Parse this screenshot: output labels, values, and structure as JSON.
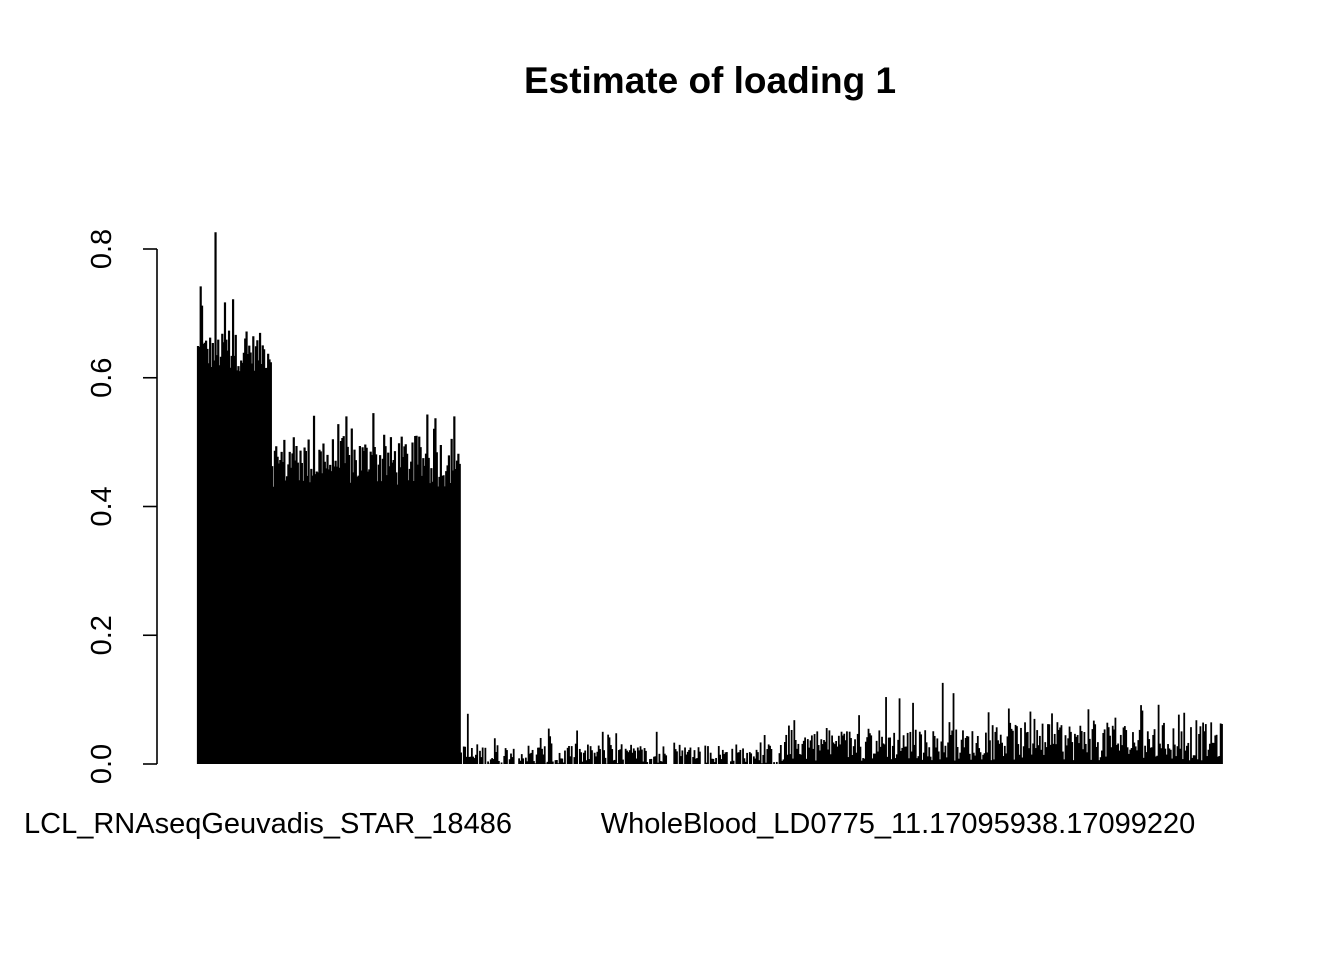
{
  "chart_data": {
    "type": "bar",
    "title": "Estimate of loading 1",
    "xlabel": "",
    "ylabel": "",
    "ylim": [
      0,
      0.8
    ],
    "yticks": [
      "0.0",
      "0.2",
      "0.4",
      "0.6",
      "0.8"
    ],
    "ytick_values": [
      0,
      0.2,
      0.4,
      0.6,
      0.8
    ],
    "xtick_labels": [
      "LCL_RNAseqGeuvadis_STAR_18486",
      "WholeBlood_LD0775_11.17095938.17099220"
    ],
    "grid": false,
    "legend": "none",
    "bar_color": "#000000",
    "n_bars": 760,
    "segments": [
      {
        "start": 0,
        "count": 55,
        "base": 0.64,
        "spread": 0.03,
        "peaks": [
          [
            13,
            0.826
          ],
          [
            2,
            0.742
          ],
          [
            26,
            0.722
          ],
          [
            20,
            0.717
          ],
          [
            3,
            0.712
          ]
        ]
      },
      {
        "start": 55,
        "count": 140,
        "base": 0.47,
        "spread": 0.04,
        "peaks": [
          [
            130,
            0.545
          ],
          [
            170,
            0.543
          ],
          [
            190,
            0.54
          ],
          [
            110,
            0.54
          ],
          [
            86,
            0.541
          ]
        ]
      },
      {
        "start": 195,
        "count": 240,
        "base": 0.012,
        "spread": 0.02,
        "peaks": [
          [
            200,
            0.078
          ],
          [
            220,
            0.04
          ],
          [
            260,
            0.055
          ],
          [
            300,
            0.05
          ],
          [
            340,
            0.05
          ],
          [
            420,
            0.045
          ]
        ]
      },
      {
        "start": 435,
        "count": 145,
        "base": 0.03,
        "spread": 0.025,
        "peaks": [
          [
            510,
            0.104
          ],
          [
            520,
            0.102
          ],
          [
            552,
            0.126
          ],
          [
            560,
            0.11
          ],
          [
            530,
            0.095
          ]
        ]
      },
      {
        "start": 580,
        "count": 180,
        "base": 0.035,
        "spread": 0.03,
        "peaks": [
          [
            660,
            0.085
          ],
          [
            700,
            0.083
          ],
          [
            712,
            0.092
          ],
          [
            680,
            0.072
          ],
          [
            740,
            0.068
          ]
        ]
      }
    ]
  }
}
